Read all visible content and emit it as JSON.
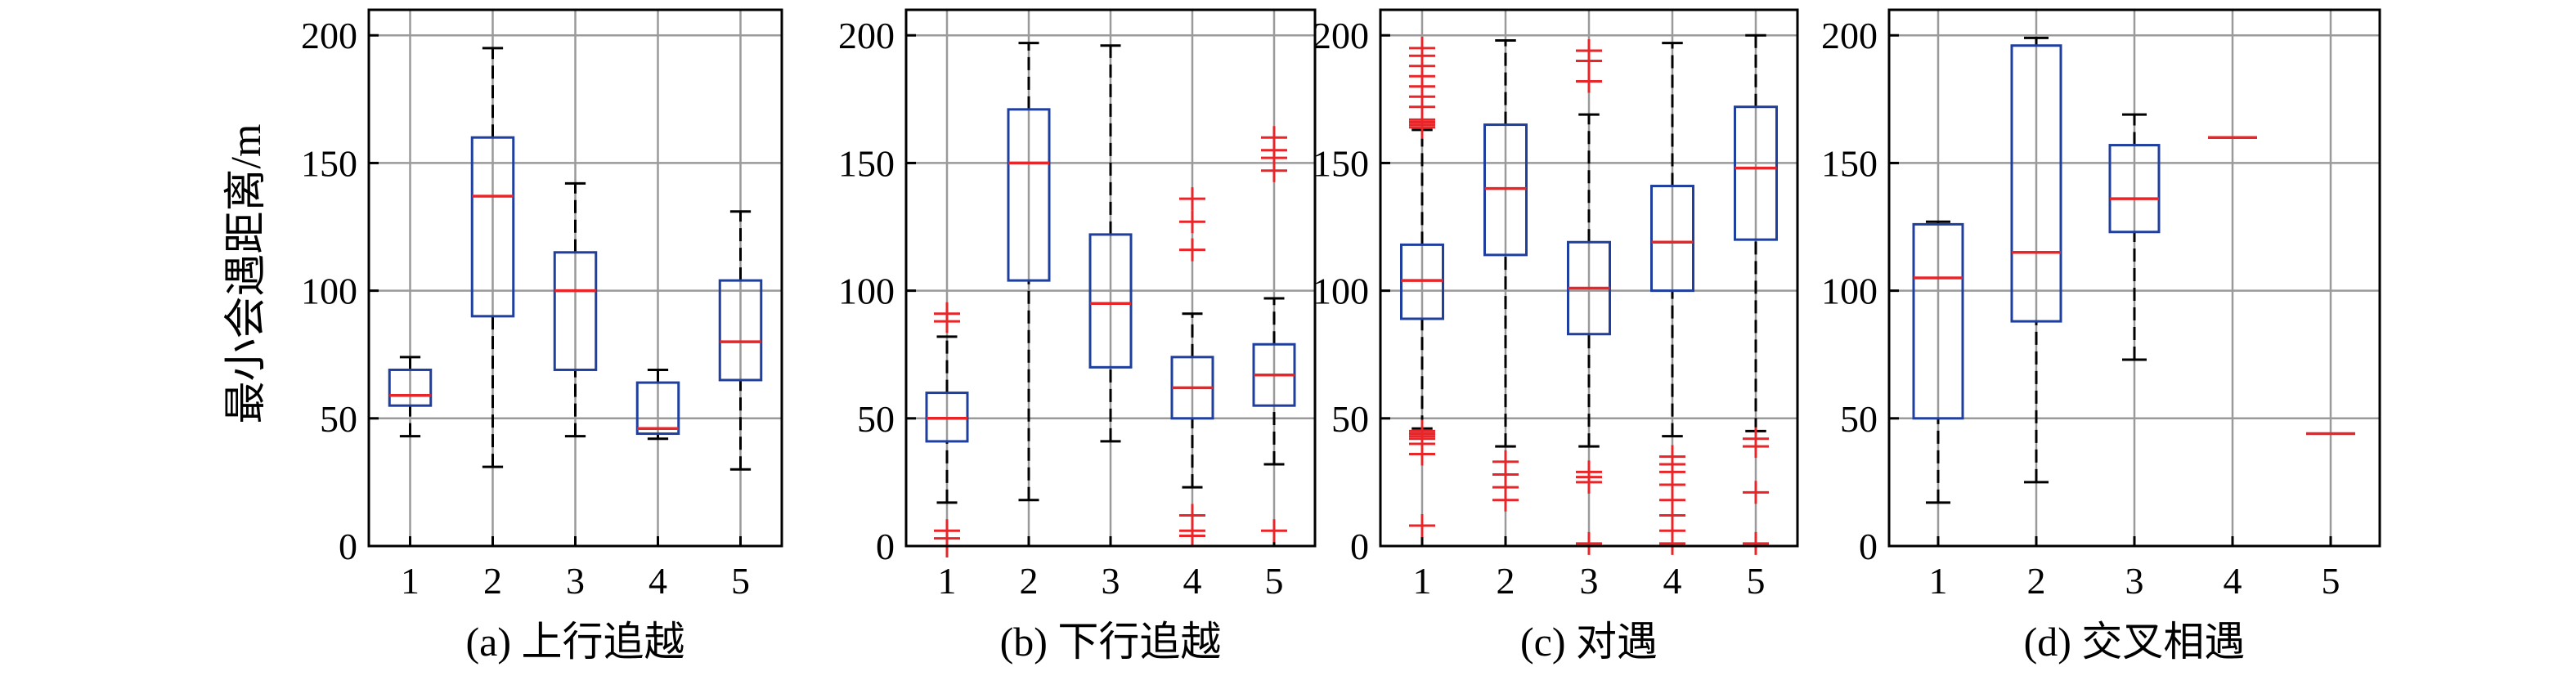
{
  "y_axis_label": "最小会遇距离/m",
  "colors": {
    "box": "#1f3f9e",
    "median": "#e8262a",
    "whisker": "#000000",
    "outlier": "#e8262a",
    "grid": "#9a9a9a",
    "axes": "#000000"
  },
  "chart_data": [
    {
      "type": "box",
      "caption": "(a) 上行追越",
      "categories": [
        "1",
        "2",
        "3",
        "4",
        "5"
      ],
      "ylim": [
        0,
        210
      ],
      "yticks": [
        0,
        50,
        100,
        150,
        200
      ],
      "grid": true,
      "boxes": [
        {
          "lower_whisker": 43,
          "q1": 55,
          "median": 59,
          "q3": 69,
          "upper_whisker": 74,
          "outliers": []
        },
        {
          "lower_whisker": 31,
          "q1": 90,
          "median": 137,
          "q3": 160,
          "upper_whisker": 195,
          "outliers": []
        },
        {
          "lower_whisker": 43,
          "q1": 69,
          "median": 100,
          "q3": 115,
          "upper_whisker": 142,
          "outliers": []
        },
        {
          "lower_whisker": 42,
          "q1": 44,
          "median": 46,
          "q3": 64,
          "upper_whisker": 69,
          "outliers": []
        },
        {
          "lower_whisker": 30,
          "q1": 65,
          "median": 80,
          "q3": 104,
          "upper_whisker": 131,
          "outliers": []
        }
      ]
    },
    {
      "type": "box",
      "caption": "(b) 下行追越",
      "categories": [
        "1",
        "2",
        "3",
        "4",
        "5"
      ],
      "ylim": [
        0,
        210
      ],
      "yticks": [
        0,
        50,
        100,
        150,
        200
      ],
      "grid": true,
      "boxes": [
        {
          "lower_whisker": 17,
          "q1": 41,
          "median": 50,
          "q3": 60,
          "upper_whisker": 82,
          "outliers": [
            0,
            3,
            6,
            88,
            91
          ]
        },
        {
          "lower_whisker": 18,
          "q1": 104,
          "median": 150,
          "q3": 171,
          "upper_whisker": 197,
          "outliers": []
        },
        {
          "lower_whisker": 41,
          "q1": 70,
          "median": 95,
          "q3": 122,
          "upper_whisker": 196,
          "outliers": []
        },
        {
          "lower_whisker": 23,
          "q1": 50,
          "median": 62,
          "q3": 74,
          "upper_whisker": 91,
          "outliers": [
            4,
            6,
            12,
            116,
            127,
            136
          ]
        },
        {
          "lower_whisker": 32,
          "q1": 55,
          "median": 67,
          "q3": 79,
          "upper_whisker": 97,
          "outliers": [
            6,
            147,
            152,
            155,
            160
          ]
        }
      ]
    },
    {
      "type": "box",
      "caption": "(c) 对遇",
      "categories": [
        "1",
        "2",
        "3",
        "4",
        "5"
      ],
      "ylim": [
        0,
        210
      ],
      "yticks": [
        0,
        50,
        100,
        150,
        200
      ],
      "grid": true,
      "boxes": [
        {
          "lower_whisker": 46,
          "q1": 89,
          "median": 104,
          "q3": 118,
          "upper_whisker": 163,
          "outliers": [
            8,
            36,
            40,
            42,
            43,
            44,
            45,
            164,
            165,
            166,
            167,
            172,
            176,
            180,
            184,
            188,
            192,
            195
          ]
        },
        {
          "lower_whisker": 39,
          "q1": 114,
          "median": 140,
          "q3": 165,
          "upper_whisker": 198,
          "outliers": [
            18,
            23,
            28,
            33
          ]
        },
        {
          "lower_whisker": 39,
          "q1": 83,
          "median": 101,
          "q3": 119,
          "upper_whisker": 169,
          "outliers": [
            1,
            25,
            27,
            29,
            182,
            190,
            194
          ]
        },
        {
          "lower_whisker": 43,
          "q1": 100,
          "median": 119,
          "q3": 141,
          "upper_whisker": 197,
          "outliers": [
            1,
            6,
            12,
            18,
            24,
            29,
            32,
            35
          ]
        },
        {
          "lower_whisker": 45,
          "q1": 120,
          "median": 148,
          "q3": 172,
          "upper_whisker": 200,
          "outliers": [
            1,
            21,
            39,
            42
          ]
        }
      ]
    },
    {
      "type": "box",
      "caption": "(d) 交叉相遇",
      "categories": [
        "1",
        "2",
        "3",
        "4",
        "5"
      ],
      "ylim": [
        0,
        210
      ],
      "yticks": [
        0,
        50,
        100,
        150,
        200
      ],
      "grid": true,
      "boxes": [
        {
          "lower_whisker": 17,
          "q1": 50,
          "median": 105,
          "q3": 126,
          "upper_whisker": 127,
          "outliers": []
        },
        {
          "lower_whisker": 25,
          "q1": 88,
          "median": 115,
          "q3": 196,
          "upper_whisker": 199,
          "outliers": []
        },
        {
          "lower_whisker": 73,
          "q1": 123,
          "median": 136,
          "q3": 157,
          "upper_whisker": 169,
          "outliers": []
        },
        {
          "lower_whisker": 160,
          "q1": 160,
          "median": 160,
          "q3": 160,
          "upper_whisker": 160,
          "outliers": []
        },
        {
          "lower_whisker": 44,
          "q1": 44,
          "median": 44,
          "q3": 44,
          "upper_whisker": 44,
          "outliers": []
        }
      ]
    }
  ]
}
